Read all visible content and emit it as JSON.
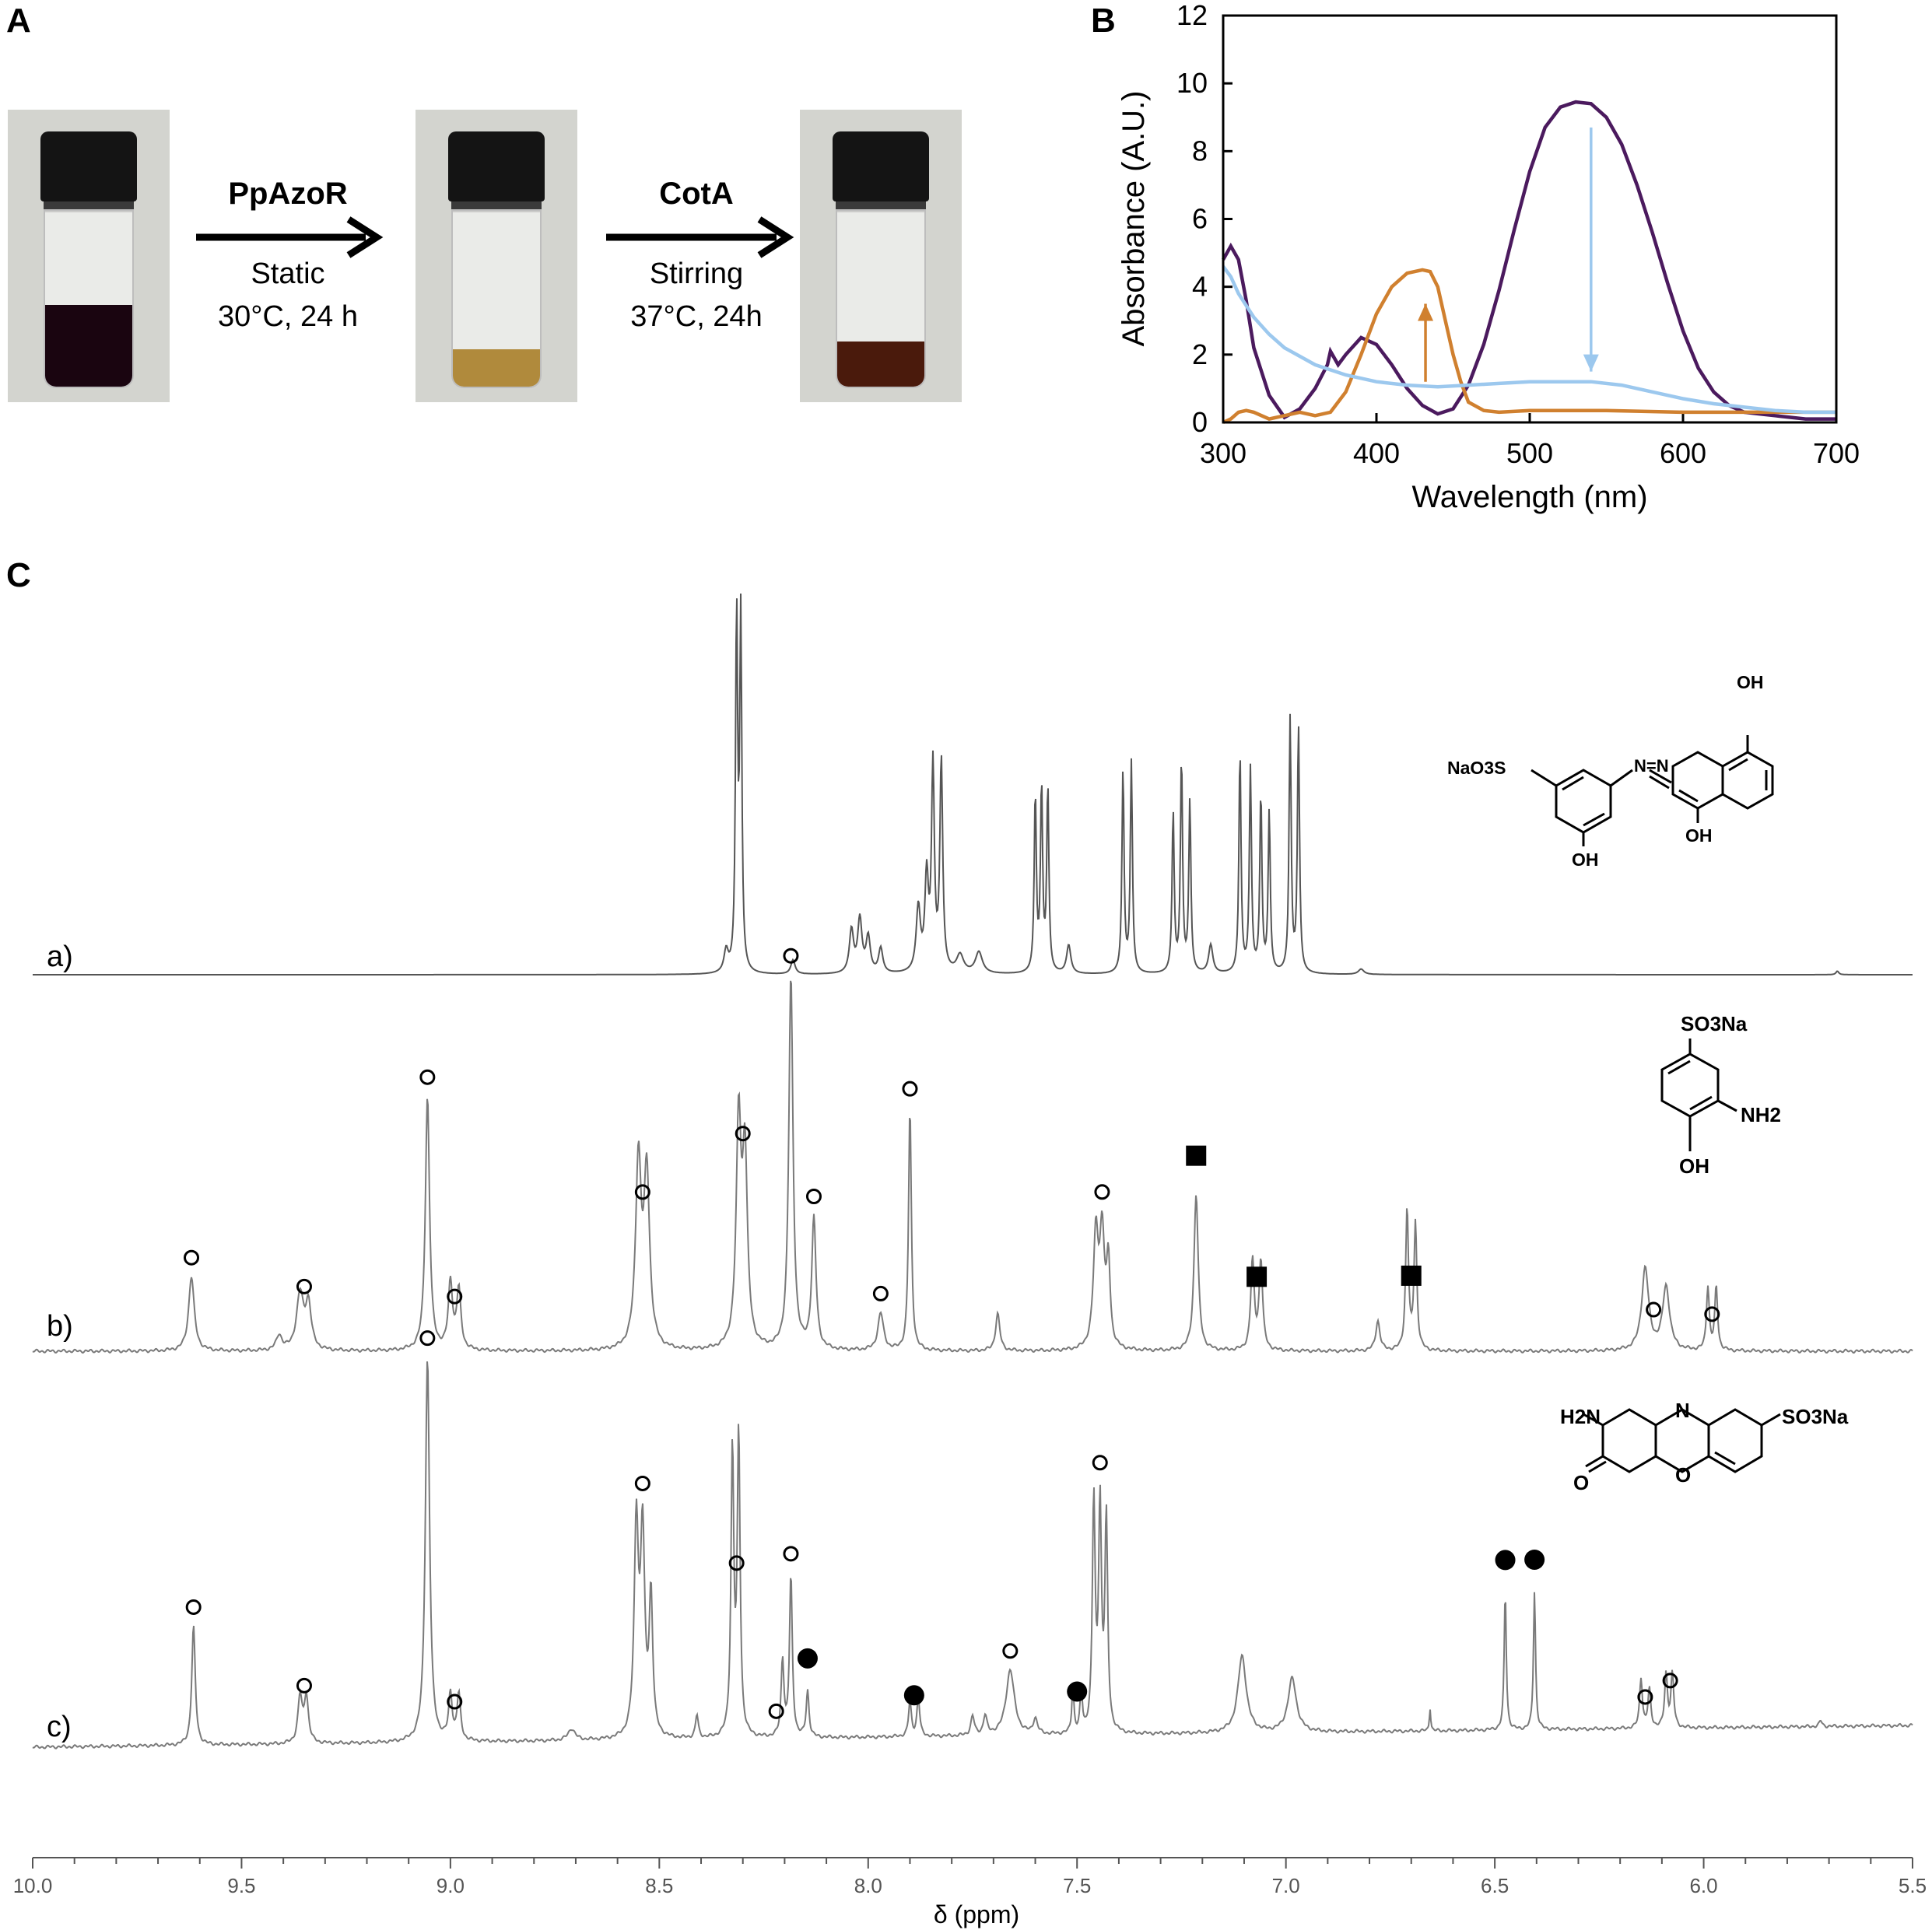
{
  "panels": {
    "a": "A",
    "b": "B",
    "c": "C"
  },
  "panel_a": {
    "step1": {
      "enzyme": "PpAzoR",
      "line1": "Static",
      "line2": "30°C, 24 h"
    },
    "step2": {
      "enzyme": "CotA",
      "line1": "Stirring",
      "line2": "37°C, 24h"
    },
    "vial_colors": [
      "#1a0510",
      "#b08a3c",
      "#4a1a0c"
    ]
  },
  "chart_data": [
    {
      "type": "line",
      "panel": "B",
      "xlabel": "Wavelength (nm)",
      "ylabel": "Absorbance (A.U.)",
      "xlim": [
        300,
        700
      ],
      "ylim": [
        0,
        12
      ],
      "xticks": [
        300,
        400,
        500,
        600,
        700
      ],
      "yticks": [
        0,
        2,
        4,
        6,
        8,
        10,
        12
      ],
      "series": [
        {
          "color": "#4b1a5e",
          "x": [
            300,
            305,
            310,
            315,
            320,
            330,
            340,
            350,
            360,
            368,
            370,
            375,
            380,
            390,
            400,
            410,
            420,
            430,
            440,
            450,
            460,
            470,
            480,
            490,
            500,
            510,
            520,
            530,
            540,
            550,
            560,
            570,
            580,
            590,
            600,
            610,
            620,
            630,
            640,
            650,
            660,
            670,
            680,
            690,
            700
          ],
          "y": [
            4.8,
            5.2,
            4.8,
            3.6,
            2.2,
            0.8,
            0.15,
            0.4,
            1.0,
            1.7,
            2.1,
            1.7,
            2.0,
            2.5,
            2.3,
            1.7,
            1.0,
            0.5,
            0.25,
            0.4,
            1.1,
            2.3,
            3.9,
            5.7,
            7.4,
            8.7,
            9.3,
            9.45,
            9.4,
            9.0,
            8.2,
            7.0,
            5.6,
            4.1,
            2.7,
            1.6,
            0.9,
            0.5,
            0.3,
            0.25,
            0.2,
            0.15,
            0.1,
            0.1,
            0.1
          ]
        },
        {
          "color": "#d0802f",
          "x": [
            300,
            305,
            310,
            315,
            320,
            330,
            340,
            350,
            360,
            370,
            380,
            390,
            400,
            410,
            420,
            430,
            435,
            440,
            445,
            450,
            455,
            460,
            470,
            480,
            500,
            550,
            600,
            650,
            700
          ],
          "y": [
            0.0,
            0.1,
            0.3,
            0.35,
            0.3,
            0.1,
            0.2,
            0.3,
            0.2,
            0.3,
            0.9,
            2.0,
            3.2,
            4.0,
            4.4,
            4.5,
            4.45,
            4.0,
            3.0,
            2.0,
            1.2,
            0.6,
            0.35,
            0.3,
            0.35,
            0.35,
            0.3,
            0.3,
            0.3
          ]
        },
        {
          "color": "#9cc8ee",
          "x": [
            300,
            305,
            310,
            320,
            330,
            340,
            360,
            380,
            400,
            420,
            440,
            460,
            480,
            500,
            520,
            540,
            560,
            580,
            600,
            620,
            640,
            660,
            680,
            700
          ],
          "y": [
            4.6,
            4.3,
            3.8,
            3.1,
            2.6,
            2.2,
            1.7,
            1.4,
            1.2,
            1.1,
            1.05,
            1.1,
            1.15,
            1.2,
            1.2,
            1.2,
            1.1,
            0.9,
            0.7,
            0.55,
            0.45,
            0.35,
            0.3,
            0.3
          ]
        }
      ],
      "annotations": [
        {
          "type": "arrow",
          "color": "#d0802f",
          "x": 432,
          "y_from": 1.2,
          "y_to": 3.5,
          "direction": "up"
        },
        {
          "type": "arrow",
          "color": "#9cc8ee",
          "x": 540,
          "y_from": 8.7,
          "y_to": 1.5,
          "direction": "down"
        }
      ]
    },
    {
      "type": "line",
      "panel": "C",
      "xlabel": "δ (ppm)",
      "xlim": [
        10.0,
        5.5
      ],
      "xticks": [
        "10.0",
        "9.5",
        "9.0",
        "8.5",
        "8.0",
        "7.5",
        "7.0",
        "6.5",
        "6.0",
        "5.5"
      ],
      "series": [
        {
          "name": "a)",
          "peaks": [
            [
              8.34,
              0.06,
              0.006
            ],
            [
              8.315,
              1.0,
              0.003
            ],
            [
              8.305,
              0.98,
              0.003
            ],
            [
              8.18,
              0.04,
              0.006
            ],
            [
              8.04,
              0.12,
              0.006
            ],
            [
              8.02,
              0.15,
              0.006
            ],
            [
              8.0,
              0.1,
              0.006
            ],
            [
              7.97,
              0.07,
              0.006
            ],
            [
              7.88,
              0.18,
              0.006
            ],
            [
              7.86,
              0.26,
              0.005
            ],
            [
              7.845,
              0.57,
              0.004
            ],
            [
              7.825,
              0.59,
              0.004
            ],
            [
              7.78,
              0.05,
              0.01
            ],
            [
              7.735,
              0.06,
              0.01
            ],
            [
              7.6,
              0.5,
              0.003
            ],
            [
              7.585,
              0.52,
              0.003
            ],
            [
              7.57,
              0.52,
              0.003
            ],
            [
              7.52,
              0.08,
              0.006
            ],
            [
              7.39,
              0.57,
              0.003
            ],
            [
              7.37,
              0.59,
              0.003
            ],
            [
              7.27,
              0.45,
              0.003
            ],
            [
              7.25,
              0.6,
              0.003
            ],
            [
              7.23,
              0.48,
              0.003
            ],
            [
              7.18,
              0.08,
              0.006
            ],
            [
              7.11,
              0.62,
              0.003
            ],
            [
              7.085,
              0.57,
              0.003
            ],
            [
              7.06,
              0.5,
              0.003
            ],
            [
              7.04,
              0.45,
              0.003
            ],
            [
              6.99,
              0.71,
              0.003
            ],
            [
              6.97,
              0.69,
              0.003
            ],
            [
              6.82,
              0.015,
              0.008
            ],
            [
              5.68,
              0.01,
              0.004
            ]
          ]
        },
        {
          "name": "b)",
          "peaks": [
            [
              9.62,
              0.2,
              0.008
            ],
            [
              9.41,
              0.04,
              0.008
            ],
            [
              9.36,
              0.15,
              0.01
            ],
            [
              9.34,
              0.12,
              0.008
            ],
            [
              9.055,
              0.68,
              0.006
            ],
            [
              9.0,
              0.18,
              0.006
            ],
            [
              8.98,
              0.16,
              0.006
            ],
            [
              8.55,
              0.5,
              0.008
            ],
            [
              8.53,
              0.46,
              0.008
            ],
            [
              8.31,
              0.6,
              0.007
            ],
            [
              8.295,
              0.5,
              0.007
            ],
            [
              8.185,
              1.0,
              0.006
            ],
            [
              8.13,
              0.35,
              0.006
            ],
            [
              7.97,
              0.1,
              0.008
            ],
            [
              7.9,
              0.65,
              0.004
            ],
            [
              7.69,
              0.1,
              0.006
            ],
            [
              7.455,
              0.3,
              0.007
            ],
            [
              7.44,
              0.3,
              0.007
            ],
            [
              7.425,
              0.22,
              0.005
            ],
            [
              7.215,
              0.42,
              0.006
            ],
            [
              7.08,
              0.24,
              0.005
            ],
            [
              7.06,
              0.24,
              0.005
            ],
            [
              6.78,
              0.08,
              0.006
            ],
            [
              6.71,
              0.38,
              0.004
            ],
            [
              6.69,
              0.34,
              0.004
            ],
            [
              6.14,
              0.22,
              0.01
            ],
            [
              6.09,
              0.17,
              0.01
            ],
            [
              5.99,
              0.17,
              0.004
            ],
            [
              5.97,
              0.17,
              0.004
            ]
          ]
        },
        {
          "name": "c)",
          "peaks": [
            [
              9.615,
              0.31,
              0.005
            ],
            [
              9.36,
              0.12,
              0.006
            ],
            [
              9.345,
              0.12,
              0.006
            ],
            [
              9.055,
              1.0,
              0.006
            ],
            [
              9.0,
              0.12,
              0.005
            ],
            [
              8.98,
              0.12,
              0.005
            ],
            [
              8.71,
              0.03,
              0.01
            ],
            [
              8.555,
              0.55,
              0.006
            ],
            [
              8.54,
              0.52,
              0.006
            ],
            [
              8.52,
              0.36,
              0.005
            ],
            [
              8.41,
              0.06,
              0.004
            ],
            [
              8.325,
              0.74,
              0.004
            ],
            [
              8.31,
              0.78,
              0.004
            ],
            [
              8.205,
              0.2,
              0.004
            ],
            [
              8.185,
              0.42,
              0.004
            ],
            [
              8.145,
              0.12,
              0.004
            ],
            [
              7.9,
              0.09,
              0.004
            ],
            [
              7.88,
              0.1,
              0.004
            ],
            [
              7.75,
              0.05,
              0.005
            ],
            [
              7.72,
              0.05,
              0.005
            ],
            [
              7.66,
              0.17,
              0.012
            ],
            [
              7.6,
              0.04,
              0.006
            ],
            [
              7.51,
              0.12,
              0.003
            ],
            [
              7.49,
              0.12,
              0.003
            ],
            [
              7.46,
              0.6,
              0.004
            ],
            [
              7.445,
              0.58,
              0.004
            ],
            [
              7.43,
              0.55,
              0.004
            ],
            [
              7.105,
              0.2,
              0.012
            ],
            [
              6.985,
              0.14,
              0.012
            ],
            [
              6.655,
              0.06,
              0.002
            ],
            [
              6.475,
              0.36,
              0.003
            ],
            [
              6.405,
              0.36,
              0.003
            ],
            [
              6.15,
              0.13,
              0.004
            ],
            [
              6.13,
              0.1,
              0.004
            ],
            [
              6.09,
              0.14,
              0.004
            ],
            [
              6.075,
              0.14,
              0.004
            ],
            [
              5.72,
              0.015,
              0.004
            ]
          ]
        }
      ],
      "markers": {
        "b)": [
          {
            "ppm": 9.62,
            "type": "open-circle"
          },
          {
            "ppm": 9.35,
            "type": "open-circle"
          },
          {
            "ppm": 9.055,
            "type": "open-circle"
          },
          {
            "ppm": 8.99,
            "type": "open-circle"
          },
          {
            "ppm": 8.54,
            "type": "open-circle"
          },
          {
            "ppm": 8.3,
            "type": "open-circle"
          },
          {
            "ppm": 8.185,
            "type": "open-circle"
          },
          {
            "ppm": 8.13,
            "type": "open-circle"
          },
          {
            "ppm": 7.97,
            "type": "open-circle"
          },
          {
            "ppm": 7.9,
            "type": "open-circle"
          },
          {
            "ppm": 7.44,
            "type": "open-circle"
          },
          {
            "ppm": 7.215,
            "type": "filled-square"
          },
          {
            "ppm": 7.07,
            "type": "filled-square"
          },
          {
            "ppm": 6.7,
            "type": "filled-square"
          },
          {
            "ppm": 6.12,
            "type": "open-circle"
          },
          {
            "ppm": 5.98,
            "type": "open-circle"
          }
        ],
        "c)": [
          {
            "ppm": 9.615,
            "type": "open-circle"
          },
          {
            "ppm": 9.35,
            "type": "open-circle"
          },
          {
            "ppm": 9.055,
            "type": "open-circle"
          },
          {
            "ppm": 8.99,
            "type": "open-circle"
          },
          {
            "ppm": 8.54,
            "type": "open-circle"
          },
          {
            "ppm": 8.315,
            "type": "open-circle"
          },
          {
            "ppm": 8.22,
            "type": "open-circle"
          },
          {
            "ppm": 8.185,
            "type": "open-circle"
          },
          {
            "ppm": 8.145,
            "type": "filled-circle"
          },
          {
            "ppm": 7.89,
            "type": "filled-circle"
          },
          {
            "ppm": 7.66,
            "type": "open-circle"
          },
          {
            "ppm": 7.5,
            "type": "filled-circle"
          },
          {
            "ppm": 7.445,
            "type": "open-circle"
          },
          {
            "ppm": 6.475,
            "type": "filled-circle"
          },
          {
            "ppm": 6.405,
            "type": "filled-circle"
          },
          {
            "ppm": 6.14,
            "type": "open-circle"
          },
          {
            "ppm": 6.08,
            "type": "open-circle"
          }
        ]
      }
    }
  ],
  "structures": {
    "a": {
      "sulfonate": "NaO3S",
      "oh_ring1": "OH",
      "oh_top": "OH",
      "oh_bottom": "OH",
      "azo": "N=N"
    },
    "b": {
      "sulfonate": "SO3Na",
      "amine": "NH2",
      "hydroxyl": "OH"
    },
    "c": {
      "amine": "H2N",
      "sulfonate": "SO3Na",
      "ketone": "O",
      "ring_n": "N",
      "ring_o": "O"
    }
  }
}
